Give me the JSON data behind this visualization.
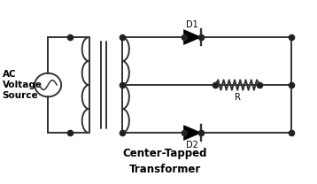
{
  "bg_color": "#ffffff",
  "line_color": "#333333",
  "dot_color": "#222222",
  "title_line1": "Center-Tapped",
  "title_line2": "Transformer",
  "label_ac": "AC\nVoltage\nSource",
  "label_d1": "D1",
  "label_d2": "D2",
  "label_r": "R",
  "lw": 1.4,
  "dot_size": 4.5,
  "xlim": [
    0,
    10
  ],
  "ylim": [
    0,
    6.5
  ]
}
